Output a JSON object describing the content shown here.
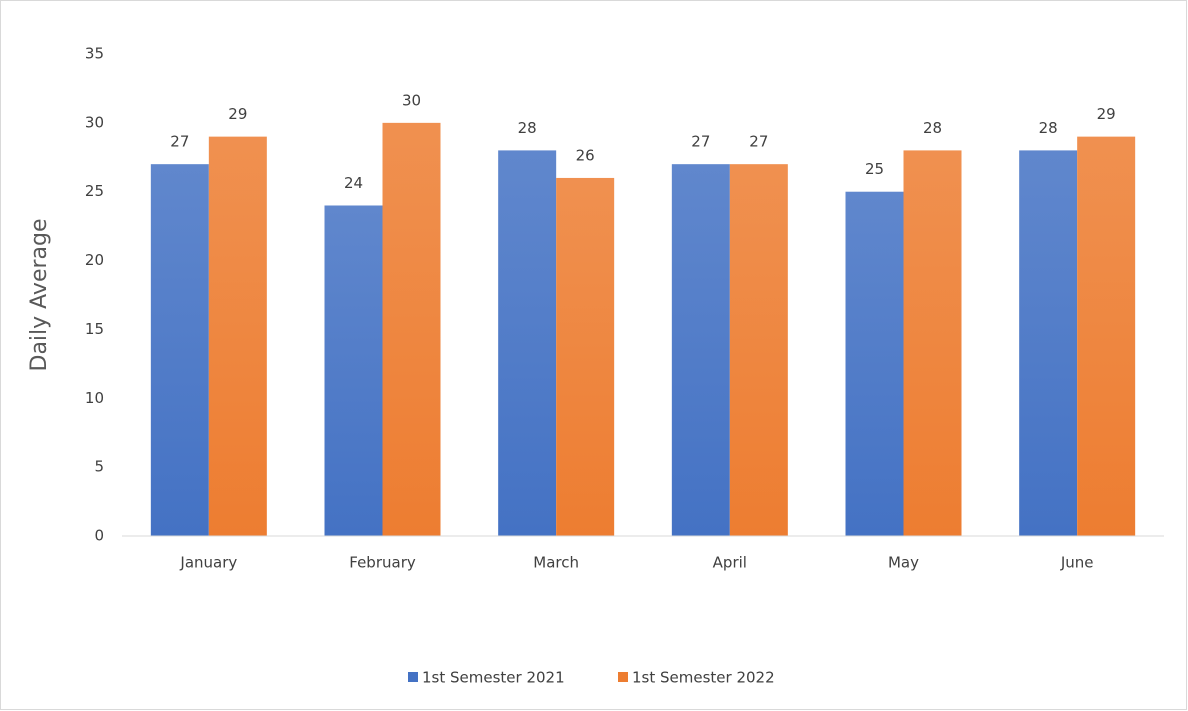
{
  "chart_data": {
    "type": "bar",
    "y_label": "Daily Average",
    "categories": [
      "January",
      "February",
      "March",
      "April",
      "May",
      "June"
    ],
    "series": [
      {
        "name": "1st Semester 2021",
        "color": "#4472c4",
        "values": [
          27,
          24,
          28,
          27,
          25,
          28
        ]
      },
      {
        "name": "1st Semester 2022",
        "color": "#ed7d31",
        "values": [
          29,
          30,
          26,
          27,
          28,
          29
        ]
      }
    ],
    "ylim": [
      0,
      35
    ],
    "yticks": [
      0,
      5,
      10,
      15,
      20,
      25,
      30,
      35
    ],
    "grid": false,
    "legend": "bottom"
  }
}
